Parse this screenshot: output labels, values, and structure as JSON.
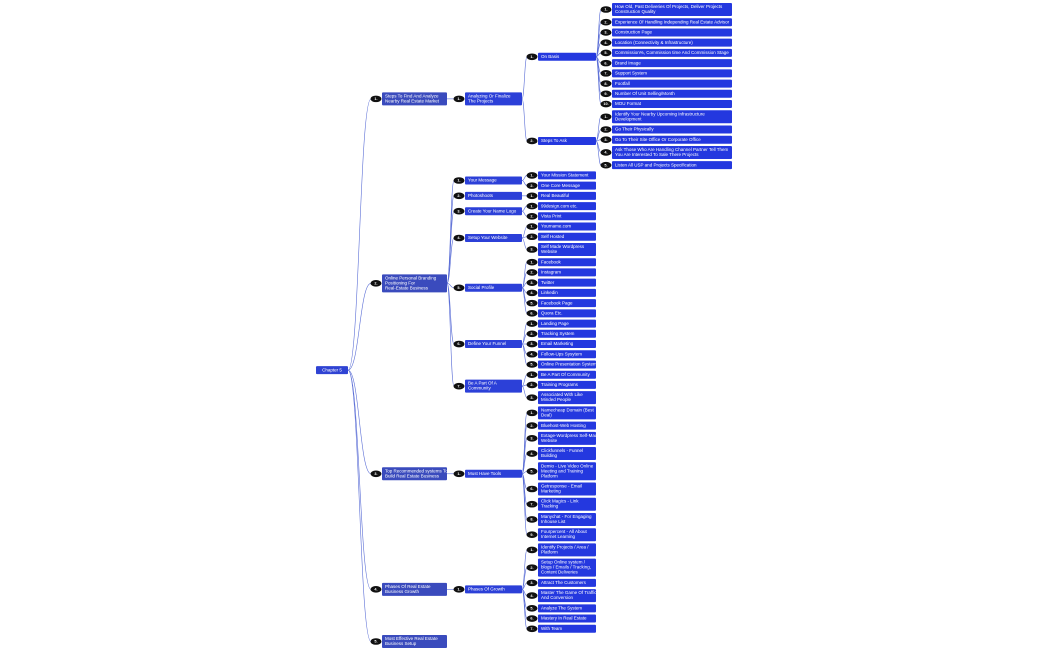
{
  "root": {
    "label": "Chapter 5",
    "children": [
      {
        "num": "1.",
        "label": "Steps To Find And Analyze Nearby Real Estate Market",
        "children": [
          {
            "num": "1.",
            "label": "Analyzing Or Finalize The Projects",
            "children": [
              {
                "num": "1.",
                "label": "On Basis",
                "children": [
                  {
                    "num": "1.",
                    "label": "How Old, Past Deliveries Of Projects, Deliver Projects Construction Quality"
                  },
                  {
                    "num": "2.",
                    "label": "Experience Of Handling Independing Real Estate Advisor"
                  },
                  {
                    "num": "3.",
                    "label": "Construction Page"
                  },
                  {
                    "num": "4.",
                    "label": "Location (Connectivity & Infrastructure)"
                  },
                  {
                    "num": "5.",
                    "label": "Commission%, Commission time And Commission Stage"
                  },
                  {
                    "num": "6.",
                    "label": "Brand Image"
                  },
                  {
                    "num": "7.",
                    "label": "Support System"
                  },
                  {
                    "num": "8.",
                    "label": "Footfall"
                  },
                  {
                    "num": "9.",
                    "label": "Number Of Unit Selling/Month"
                  },
                  {
                    "num": "10.",
                    "label": "MOU Format"
                  }
                ]
              },
              {
                "num": "2.",
                "label": "Steps To Ask",
                "children": [
                  {
                    "num": "1.",
                    "label": "Identify Your Nearby Upcoming Infrastructure Development"
                  },
                  {
                    "num": "2.",
                    "label": "Go Their Physically"
                  },
                  {
                    "num": "3.",
                    "label": "Go To Their Site Office Or Corporate Office"
                  },
                  {
                    "num": "4.",
                    "label": "Ask Those Who Are Handling Channel Partner Tell Them You Are Interested To Sale There Projects"
                  },
                  {
                    "num": "5.",
                    "label": "Listen All USP and Projects Specification"
                  }
                ]
              }
            ]
          }
        ]
      },
      {
        "num": "2.",
        "label": "Online Personal Branding Positioning For Real-Estate Business",
        "children": [
          {
            "num": "1.",
            "label": "Your Message",
            "children": [
              {
                "num": "1.",
                "label": "Your Mission Statement"
              },
              {
                "num": "2.",
                "label": "One Core Message"
              }
            ]
          },
          {
            "num": "2.",
            "label": "Photoshoots",
            "children": [
              {
                "num": "1.",
                "label": "Real Beautiful"
              }
            ]
          },
          {
            "num": "3.",
            "label": "Create Your Name Logo",
            "children": [
              {
                "num": "1.",
                "label": "99design.com etc."
              },
              {
                "num": "2.",
                "label": "Vista Print"
              }
            ]
          },
          {
            "num": "4.",
            "label": "Setup Your Website",
            "children": [
              {
                "num": "1.",
                "label": "Yourname.com"
              },
              {
                "num": "2.",
                "label": "Self Hosted"
              },
              {
                "num": "3.",
                "label": "Self Made Wordpress Website"
              }
            ]
          },
          {
            "num": "5.",
            "label": "Social Profile",
            "children": [
              {
                "num": "1.",
                "label": "Facebook"
              },
              {
                "num": "2.",
                "label": "Instagram"
              },
              {
                "num": "3.",
                "label": "Twitter"
              },
              {
                "num": "4.",
                "label": "Linkedin"
              },
              {
                "num": "5.",
                "label": "Facebook Page"
              },
              {
                "num": "6.",
                "label": "Quora Etc."
              }
            ]
          },
          {
            "num": "6.",
            "label": "Define Your Funnel",
            "children": [
              {
                "num": "1.",
                "label": "Landing Page"
              },
              {
                "num": "2.",
                "label": "Tracking System"
              },
              {
                "num": "3.",
                "label": "Email Marketing"
              },
              {
                "num": "4.",
                "label": "Follow-Ups Sysytem"
              },
              {
                "num": "5.",
                "label": "Online Presentation System"
              }
            ]
          },
          {
            "num": "7.",
            "label": "Be A Part Of A Community",
            "children": [
              {
                "num": "1.",
                "label": "Be A Part Of Community"
              },
              {
                "num": "2.",
                "label": "Training Programs"
              },
              {
                "num": "3.",
                "label": "Associated With Like Minded People"
              }
            ]
          }
        ]
      },
      {
        "num": "3.",
        "label": "Top Recommended systems To Build Real Estate Business",
        "children": [
          {
            "num": "1.",
            "label": "Must Have Tools",
            "children": [
              {
                "num": "1.",
                "label": "Namecheap Domain (Best Deal)"
              },
              {
                "num": "2.",
                "label": "Bluehost-Web Hosting"
              },
              {
                "num": "3.",
                "label": "Extage-Wordpress Self-Made Website"
              },
              {
                "num": "4.",
                "label": "Clickfunnels - Funnel Building"
              },
              {
                "num": "5.",
                "label": "Demio - Live Video Online Meeting and Training Platform"
              },
              {
                "num": "6.",
                "label": "Getresponse - Email Marketing"
              },
              {
                "num": "7.",
                "label": "Click Magics - Link Tracking"
              },
              {
                "num": "8.",
                "label": "Manychat - For Engaging Inhouse List"
              },
              {
                "num": "9.",
                "label": "Fourpercent - All About Internet Learning"
              }
            ]
          }
        ]
      },
      {
        "num": "4.",
        "label": "Phases Of Real Estate Business Growth",
        "children": [
          {
            "num": "1.",
            "label": "Phases Of Growth",
            "children": [
              {
                "num": "1.",
                "label": "Identify Projects / Area / Platform"
              },
              {
                "num": "2.",
                "label": "Setup Online system / blogs / Emails / Tracking, Content Deliveries"
              },
              {
                "num": "3.",
                "label": "Attract The Customers"
              },
              {
                "num": "4.",
                "label": "Master The Game Of Traffic And Conversion"
              },
              {
                "num": "5.",
                "label": "Analyze The System"
              },
              {
                "num": "6.",
                "label": "Mastery In Real Estate"
              },
              {
                "num": "7.",
                "label": "With Team"
              }
            ]
          }
        ]
      },
      {
        "num": "5.",
        "label": "Most Effective Real Estate Business Setup"
      }
    ]
  }
}
